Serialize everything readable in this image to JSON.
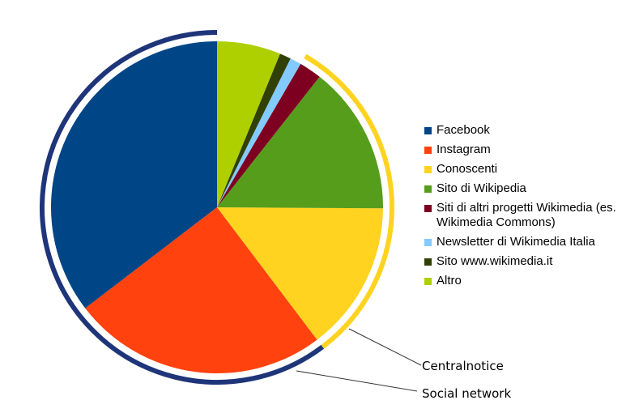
{
  "chart_data": {
    "type": "pie",
    "slices": [
      {
        "label": "Facebook",
        "value": 35.4,
        "color": "#004586"
      },
      {
        "label": "Instagram",
        "value": 24.9,
        "color": "#ff420e"
      },
      {
        "label": "Conoscenti",
        "value": 14.6,
        "color": "#ffd320"
      },
      {
        "label": "Sito di Wikipedia",
        "value": 14.5,
        "color": "#579d1c"
      },
      {
        "label": "Siti di altri progetti Wikimedia (es. Wikimedia Commons)",
        "value": 2.2,
        "color": "#7e0021"
      },
      {
        "label": "Newsletter di Wikimedia Italia",
        "value": 1.1,
        "color": "#83caff"
      },
      {
        "label": "Sito www.wikimedia.it",
        "value": 1.1,
        "color": "#314004"
      },
      {
        "label": "Altro",
        "value": 6.2,
        "color": "#aecf00"
      }
    ],
    "groups": [
      {
        "label": "Centralnotice",
        "members": [
          "Conoscenti",
          "Sito di Wikipedia",
          "Siti di altri progetti Wikimedia (es. Wikimedia Commons)"
        ],
        "color": "#ffd320"
      },
      {
        "label": "Social network",
        "members": [
          "Facebook",
          "Instagram"
        ],
        "color": "#1f3579"
      }
    ],
    "legend_position": "right"
  }
}
